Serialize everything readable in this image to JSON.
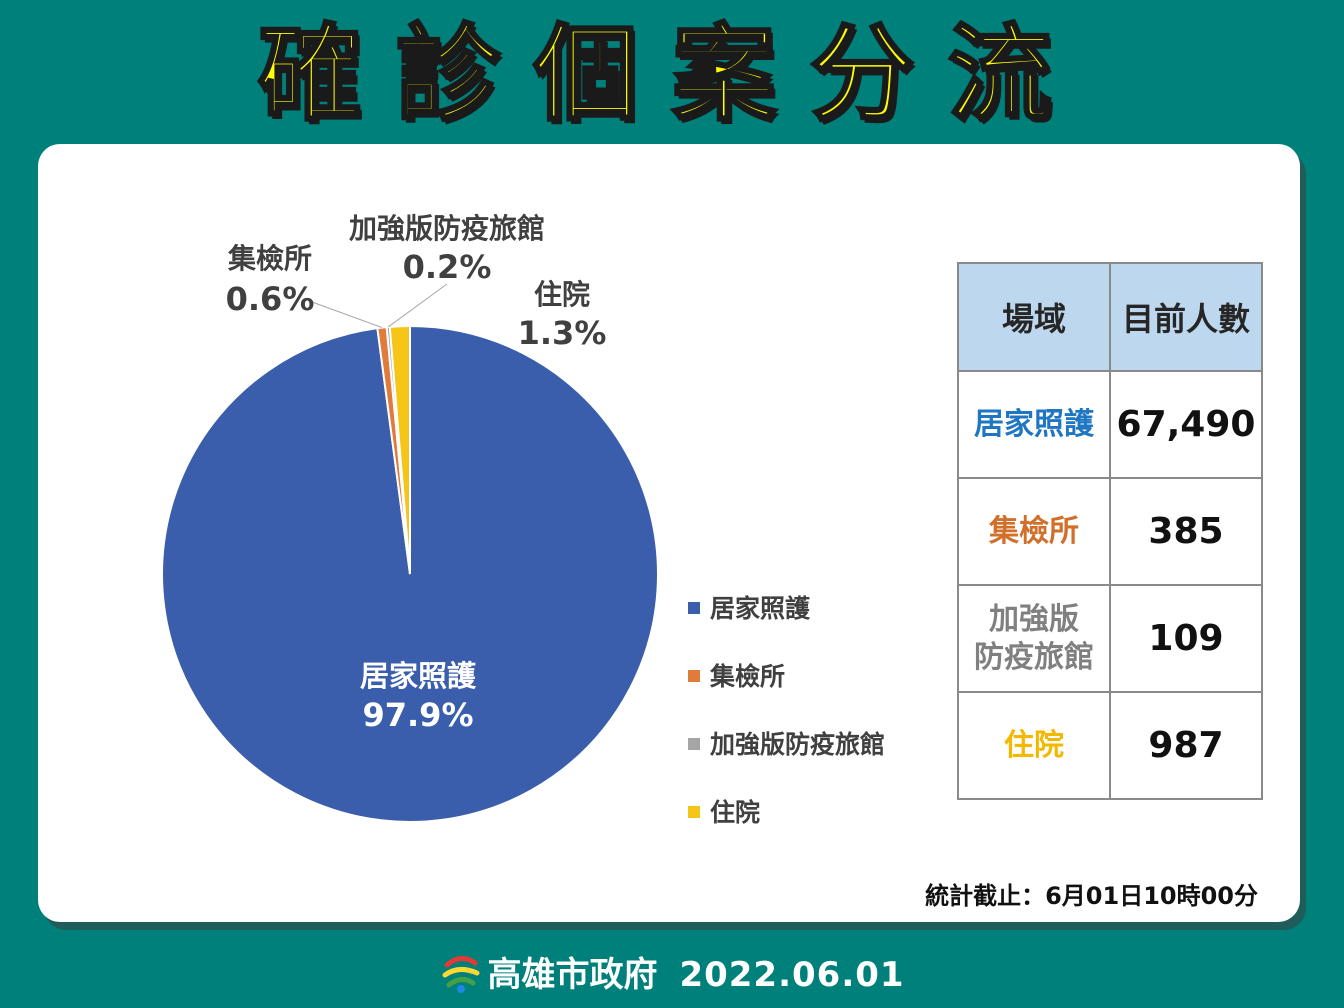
{
  "title": "確診個案分流",
  "chart_data": {
    "type": "pie",
    "categories": [
      "居家照護",
      "集檢所",
      "加強版防疫旅館",
      "住院"
    ],
    "values": [
      97.9,
      0.6,
      0.2,
      1.3
    ],
    "labels": [
      "97.9%",
      "0.6%",
      "0.2%",
      "1.3%"
    ],
    "colors": [
      "#3a5eac",
      "#e07b39",
      "#a5a5a5",
      "#f5c518"
    ],
    "legend_position": "right"
  },
  "table": {
    "headers": [
      "場域",
      "目前人數"
    ],
    "rows": [
      {
        "site_lines": [
          "居家照護"
        ],
        "count": "67,490",
        "color": "#1f77c4"
      },
      {
        "site_lines": [
          "集檢所"
        ],
        "count": "385",
        "color": "#d0702a"
      },
      {
        "site_lines": [
          "加強版",
          "防疫旅館"
        ],
        "count": "109",
        "color": "#808080"
      },
      {
        "site_lines": [
          "住院"
        ],
        "count": "987",
        "color": "#f5b800"
      }
    ]
  },
  "footnote": "統計截止：6月01日10時00分",
  "footer": {
    "org": "高雄市政府",
    "date": "2022.06.01"
  }
}
